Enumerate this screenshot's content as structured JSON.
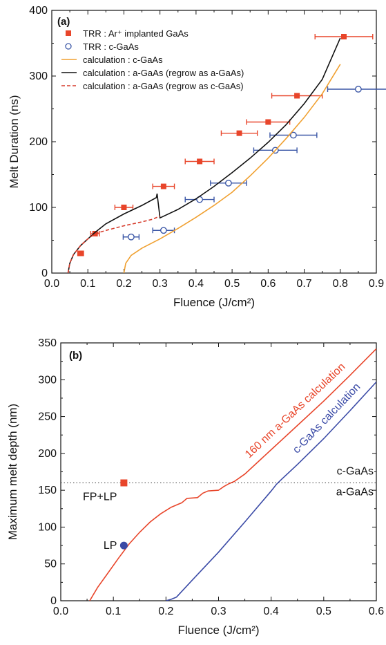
{
  "chart_data": [
    {
      "panel": "(a)",
      "type": "scatter",
      "xlabel": "Fluence (J/cm²)",
      "ylabel": "Melt Duration (ns)",
      "xlim": [
        0.0,
        0.9
      ],
      "ylim": [
        0,
        400
      ],
      "xticks": [
        0.0,
        0.1,
        0.2,
        0.3,
        0.4,
        0.5,
        0.6,
        0.7,
        0.8,
        0.9
      ],
      "yticks": [
        0,
        100,
        200,
        300,
        400
      ],
      "legend_position": "top-left",
      "series": [
        {
          "name": "TRR : Ar⁺ implanted GaAs",
          "kind": "points",
          "marker": "filled-square",
          "color": "#e8452a",
          "points": [
            {
              "x": 0.08,
              "y": 30,
              "xerr": 0.008
            },
            {
              "x": 0.12,
              "y": 60,
              "xerr": 0.012
            },
            {
              "x": 0.2,
              "y": 100,
              "xerr": 0.025
            },
            {
              "x": 0.31,
              "y": 132,
              "xerr": 0.03
            },
            {
              "x": 0.41,
              "y": 170,
              "xerr": 0.04
            },
            {
              "x": 0.52,
              "y": 213,
              "xerr": 0.05
            },
            {
              "x": 0.6,
              "y": 230,
              "xerr": 0.06
            },
            {
              "x": 0.68,
              "y": 270,
              "xerr": 0.07
            },
            {
              "x": 0.81,
              "y": 360,
              "xerr": 0.08
            }
          ]
        },
        {
          "name": "TRR : c-GaAs",
          "kind": "points",
          "marker": "open-circle",
          "color": "#3a56a6",
          "points": [
            {
              "x": 0.22,
              "y": 55,
              "xerr": 0.022
            },
            {
              "x": 0.31,
              "y": 65,
              "xerr": 0.03
            },
            {
              "x": 0.41,
              "y": 112,
              "xerr": 0.04
            },
            {
              "x": 0.49,
              "y": 137,
              "xerr": 0.05
            },
            {
              "x": 0.62,
              "y": 187,
              "xerr": 0.06
            },
            {
              "x": 0.67,
              "y": 210,
              "xerr": 0.065
            },
            {
              "x": 0.85,
              "y": 280,
              "xerr": 0.085
            }
          ]
        },
        {
          "name": "calculation : c-GaAs",
          "kind": "line",
          "color": "#f0a030",
          "points": [
            [
              0.2,
              0
            ],
            [
              0.205,
              15
            ],
            [
              0.22,
              27
            ],
            [
              0.25,
              38
            ],
            [
              0.3,
              52
            ],
            [
              0.35,
              68
            ],
            [
              0.4,
              85
            ],
            [
              0.45,
              103
            ],
            [
              0.5,
              123
            ],
            [
              0.55,
              148
            ],
            [
              0.6,
              175
            ],
            [
              0.65,
              205
            ],
            [
              0.7,
              237
            ],
            [
              0.75,
              273
            ],
            [
              0.8,
              318
            ]
          ]
        },
        {
          "name": "calculation : a-GaAs (regrow as a-GaAs)",
          "kind": "line",
          "color": "#111111",
          "points": [
            [
              0.045,
              0
            ],
            [
              0.05,
              15
            ],
            [
              0.06,
              28
            ],
            [
              0.08,
              42
            ],
            [
              0.1,
              52
            ],
            [
              0.12,
              62
            ],
            [
              0.15,
              75
            ],
            [
              0.2,
              90
            ],
            [
              0.25,
              103
            ],
            [
              0.29,
              115
            ],
            [
              0.292,
              121
            ],
            [
              0.3,
              84
            ],
            [
              0.35,
              97
            ],
            [
              0.4,
              113
            ],
            [
              0.45,
              132
            ],
            [
              0.5,
              153
            ],
            [
              0.55,
              175
            ],
            [
              0.6,
              199
            ],
            [
              0.65,
              226
            ],
            [
              0.7,
              258
            ],
            [
              0.75,
              295
            ],
            [
              0.8,
              358
            ]
          ]
        },
        {
          "name": "calculation : a-GaAs (regrow as c-GaAs)",
          "kind": "dashed-line",
          "color": "#d63a2a",
          "points": [
            [
              0.045,
              0
            ],
            [
              0.05,
              15
            ],
            [
              0.06,
              28
            ],
            [
              0.08,
              42
            ],
            [
              0.1,
              52
            ],
            [
              0.12,
              60
            ],
            [
              0.15,
              65
            ],
            [
              0.2,
              72
            ],
            [
              0.25,
              78
            ],
            [
              0.28,
              82
            ],
            [
              0.3,
              87
            ]
          ]
        }
      ]
    },
    {
      "panel": "(b)",
      "type": "line",
      "xlabel": "Fluence (J/cm²)",
      "ylabel": "Maximum melt depth (nm)",
      "xlim": [
        0.0,
        0.6
      ],
      "ylim": [
        0,
        350
      ],
      "xticks": [
        0.0,
        0.1,
        0.2,
        0.3,
        0.4,
        0.5,
        0.6
      ],
      "yticks": [
        0,
        50,
        100,
        150,
        200,
        250,
        300,
        350
      ],
      "reference_line": {
        "y": 160,
        "style": "dotted",
        "label_above": "c-GaAs",
        "label_below": "a-GaAs"
      },
      "series": [
        {
          "name": "160 nm a-GaAs calculation",
          "kind": "line",
          "color": "#e8452a",
          "points": [
            [
              0.055,
              0
            ],
            [
              0.07,
              18
            ],
            [
              0.09,
              38
            ],
            [
              0.11,
              58
            ],
            [
              0.13,
              77
            ],
            [
              0.15,
              93
            ],
            [
              0.17,
              107
            ],
            [
              0.19,
              118
            ],
            [
              0.21,
              127
            ],
            [
              0.23,
              133
            ],
            [
              0.24,
              139
            ],
            [
              0.26,
              140
            ],
            [
              0.27,
              146
            ],
            [
              0.28,
              149
            ],
            [
              0.3,
              150
            ],
            [
              0.31,
              155
            ],
            [
              0.32,
              159
            ],
            [
              0.33,
              162
            ],
            [
              0.35,
              172
            ],
            [
              0.4,
              205
            ],
            [
              0.45,
              238
            ],
            [
              0.5,
              271
            ],
            [
              0.55,
              306
            ],
            [
              0.6,
              342
            ]
          ]
        },
        {
          "name": "c-GaAs calculation",
          "kind": "line",
          "color": "#3a4aa6",
          "points": [
            [
              0.2,
              0
            ],
            [
              0.21,
              2
            ],
            [
              0.22,
              5
            ],
            [
              0.25,
              28
            ],
            [
              0.3,
              66
            ],
            [
              0.35,
              107
            ],
            [
              0.4,
              149
            ],
            [
              0.41,
              158
            ],
            [
              0.42,
              165
            ],
            [
              0.45,
              185
            ],
            [
              0.5,
              220
            ],
            [
              0.55,
              258
            ],
            [
              0.6,
              297
            ]
          ]
        }
      ],
      "points": [
        {
          "label": "FP+LP",
          "x": 0.12,
          "y": 160,
          "marker": "filled-square",
          "color": "#e8452a"
        },
        {
          "label": "LP",
          "x": 0.12,
          "y": 75,
          "marker": "filled-circle",
          "color": "#3a4aa6"
        }
      ]
    }
  ]
}
